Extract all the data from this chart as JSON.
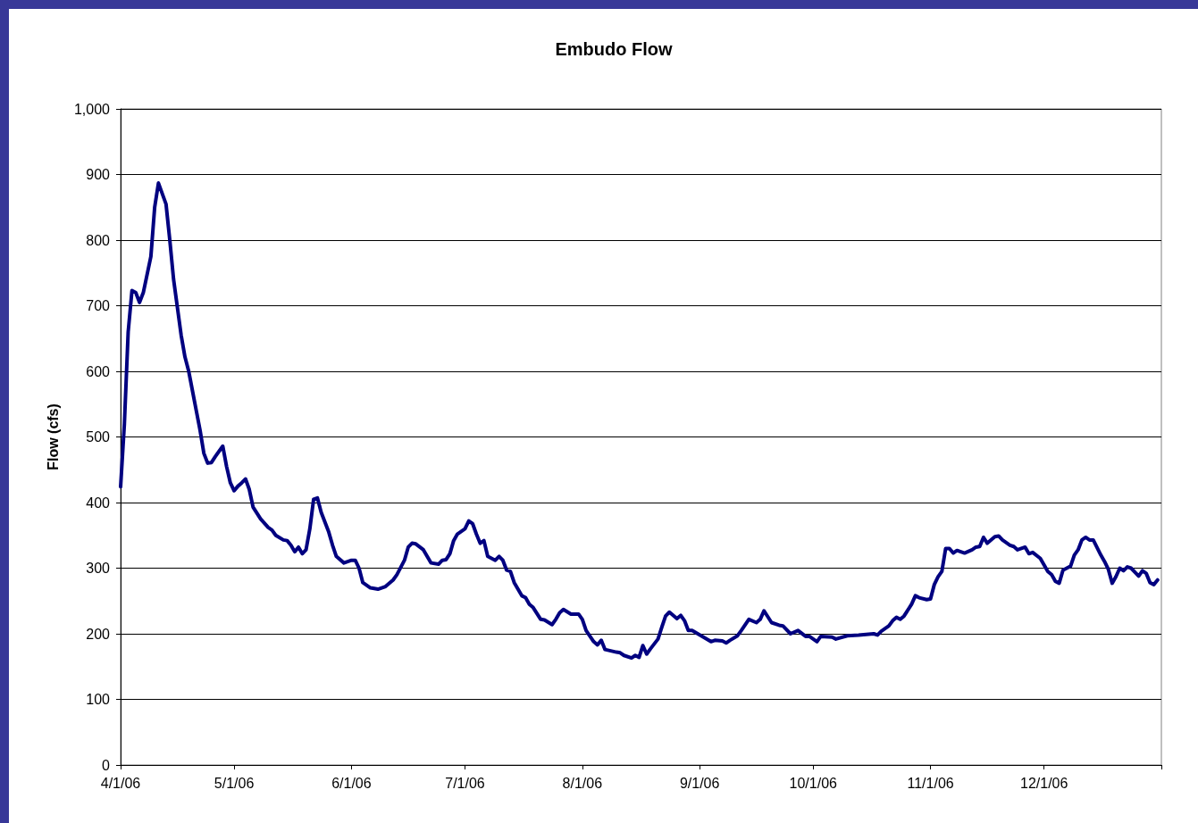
{
  "chart_data": {
    "type": "line",
    "title": "Embudo Flow",
    "ylabel": "Flow (cfs)",
    "xlim": [
      "2006-04-01",
      "2007-01-01"
    ],
    "xticks": [
      {
        "value": "2006-04-01",
        "label": "4/1/06"
      },
      {
        "value": "2006-05-01",
        "label": "5/1/06"
      },
      {
        "value": "2006-06-01",
        "label": "6/1/06"
      },
      {
        "value": "2006-07-01",
        "label": "7/1/06"
      },
      {
        "value": "2006-08-01",
        "label": "8/1/06"
      },
      {
        "value": "2006-09-01",
        "label": "9/1/06"
      },
      {
        "value": "2006-10-01",
        "label": "10/1/06"
      },
      {
        "value": "2006-11-01",
        "label": "11/1/06"
      },
      {
        "value": "2006-12-01",
        "label": "12/1/06"
      },
      {
        "value": "2007-01-01",
        "label": null
      }
    ],
    "ylim": [
      0,
      1000
    ],
    "yticks": [
      0,
      100,
      200,
      300,
      400,
      500,
      600,
      700,
      800,
      900,
      {
        "value": 1000,
        "label": "1,000"
      }
    ],
    "grid": "y",
    "marker": "none",
    "line_style": "solid",
    "series": [
      {
        "color": "#000080",
        "x": [
          "2006-04-01",
          "2006-04-02",
          "2006-04-03",
          "2006-04-04",
          "2006-04-05",
          "2006-04-06",
          "2006-04-07",
          "2006-04-09",
          "2006-04-10",
          "2006-04-11",
          "2006-04-13",
          "2006-04-14",
          "2006-04-15",
          "2006-04-17",
          "2006-04-18",
          "2006-04-19",
          "2006-04-21",
          "2006-04-22",
          "2006-04-23",
          "2006-04-24",
          "2006-04-25",
          "2006-04-26",
          "2006-04-28",
          "2006-04-29",
          "2006-04-30",
          "2006-05-01",
          "2006-05-02",
          "2006-05-03",
          "2006-05-04",
          "2006-05-05",
          "2006-05-06",
          "2006-05-08",
          "2006-05-10",
          "2006-05-11",
          "2006-05-12",
          "2006-05-14",
          "2006-05-15",
          "2006-05-16",
          "2006-05-17",
          "2006-05-18",
          "2006-05-19",
          "2006-05-20",
          "2006-05-21",
          "2006-05-22",
          "2006-05-23",
          "2006-05-24",
          "2006-05-26",
          "2006-05-27",
          "2006-05-28",
          "2006-05-30",
          "2006-06-01",
          "2006-06-02",
          "2006-06-03",
          "2006-06-04",
          "2006-06-06",
          "2006-06-08",
          "2006-06-10",
          "2006-06-12",
          "2006-06-13",
          "2006-06-15",
          "2006-06-16",
          "2006-06-17",
          "2006-06-18",
          "2006-06-20",
          "2006-06-21",
          "2006-06-22",
          "2006-06-24",
          "2006-06-25",
          "2006-06-26",
          "2006-06-27",
          "2006-06-28",
          "2006-06-29",
          "2006-07-01",
          "2006-07-02",
          "2006-07-03",
          "2006-07-04",
          "2006-07-05",
          "2006-07-06",
          "2006-07-07",
          "2006-07-09",
          "2006-07-10",
          "2006-07-11",
          "2006-07-12",
          "2006-07-13",
          "2006-07-14",
          "2006-07-16",
          "2006-07-17",
          "2006-07-18",
          "2006-07-19",
          "2006-07-21",
          "2006-07-22",
          "2006-07-24",
          "2006-07-25",
          "2006-07-26",
          "2006-07-27",
          "2006-07-29",
          "2006-07-31",
          "2006-08-01",
          "2006-08-02",
          "2006-08-04",
          "2006-08-05",
          "2006-08-06",
          "2006-08-07",
          "2006-08-10",
          "2006-08-11",
          "2006-08-12",
          "2006-08-14",
          "2006-08-15",
          "2006-08-16",
          "2006-08-17",
          "2006-08-18",
          "2006-08-19",
          "2006-08-21",
          "2006-08-22",
          "2006-08-23",
          "2006-08-24",
          "2006-08-26",
          "2006-08-27",
          "2006-08-28",
          "2006-08-29",
          "2006-08-30",
          "2006-09-02",
          "2006-09-04",
          "2006-09-05",
          "2006-09-07",
          "2006-09-08",
          "2006-09-09",
          "2006-09-11",
          "2006-09-12",
          "2006-09-14",
          "2006-09-16",
          "2006-09-17",
          "2006-09-18",
          "2006-09-20",
          "2006-09-22",
          "2006-09-23",
          "2006-09-25",
          "2006-09-27",
          "2006-09-29",
          "2006-09-30",
          "2006-10-02",
          "2006-10-03",
          "2006-10-06",
          "2006-10-07",
          "2006-10-10",
          "2006-10-13",
          "2006-10-17",
          "2006-10-18",
          "2006-10-19",
          "2006-10-21",
          "2006-10-22",
          "2006-10-23",
          "2006-10-24",
          "2006-10-25",
          "2006-10-27",
          "2006-10-28",
          "2006-10-29",
          "2006-10-31",
          "2006-11-01",
          "2006-11-02",
          "2006-11-03",
          "2006-11-04",
          "2006-11-05",
          "2006-11-06",
          "2006-11-07",
          "2006-11-08",
          "2006-11-10",
          "2006-11-12",
          "2006-11-13",
          "2006-11-14",
          "2006-11-15",
          "2006-11-16",
          "2006-11-18",
          "2006-11-19",
          "2006-11-20",
          "2006-11-22",
          "2006-11-23",
          "2006-11-24",
          "2006-11-26",
          "2006-11-27",
          "2006-11-28",
          "2006-11-30",
          "2006-12-02",
          "2006-12-03",
          "2006-12-04",
          "2006-12-05",
          "2006-12-06",
          "2006-12-07",
          "2006-12-08",
          "2006-12-09",
          "2006-12-10",
          "2006-12-11",
          "2006-12-12",
          "2006-12-13",
          "2006-12-14",
          "2006-12-16",
          "2006-12-17",
          "2006-12-18",
          "2006-12-19",
          "2006-12-20",
          "2006-12-21",
          "2006-12-22",
          "2006-12-23",
          "2006-12-24",
          "2006-12-26",
          "2006-12-27",
          "2006-12-28",
          "2006-12-29",
          "2006-12-30",
          "2006-12-31"
        ],
        "values": [
          424,
          520,
          660,
          723,
          720,
          705,
          720,
          775,
          850,
          887,
          855,
          800,
          740,
          655,
          622,
          600,
          540,
          510,
          475,
          460,
          461,
          470,
          486,
          455,
          430,
          418,
          425,
          430,
          436,
          420,
          393,
          375,
          362,
          358,
          350,
          343,
          342,
          335,
          325,
          332,
          322,
          328,
          360,
          405,
          407,
          385,
          355,
          335,
          318,
          308,
          312,
          312,
          300,
          278,
          270,
          268,
          272,
          282,
          290,
          312,
          332,
          338,
          337,
          328,
          318,
          308,
          306,
          312,
          313,
          322,
          342,
          352,
          360,
          372,
          368,
          352,
          338,
          342,
          318,
          312,
          318,
          312,
          297,
          295,
          278,
          258,
          255,
          245,
          240,
          222,
          221,
          214,
          222,
          232,
          237,
          230,
          230,
          222,
          205,
          188,
          183,
          190,
          176,
          172,
          171,
          167,
          163,
          167,
          164,
          182,
          169,
          177,
          192,
          210,
          227,
          233,
          223,
          228,
          220,
          205,
          205,
          195,
          188,
          190,
          189,
          186,
          190,
          197,
          205,
          222,
          217,
          222,
          235,
          217,
          213,
          212,
          200,
          205,
          196,
          196,
          188,
          196,
          195,
          192,
          197,
          198,
          200,
          198,
          204,
          212,
          220,
          225,
          222,
          227,
          245,
          258,
          255,
          252,
          253,
          275,
          287,
          295,
          330,
          330,
          323,
          327,
          323,
          328,
          332,
          333,
          347,
          338,
          348,
          349,
          343,
          335,
          333,
          328,
          332,
          322,
          324,
          315,
          295,
          290,
          280,
          277,
          297,
          300,
          303,
          320,
          328,
          343,
          347,
          343,
          343,
          320,
          310,
          298,
          277,
          287,
          300,
          296,
          302,
          300,
          288,
          296,
          292,
          278,
          275,
          282
        ]
      }
    ]
  }
}
